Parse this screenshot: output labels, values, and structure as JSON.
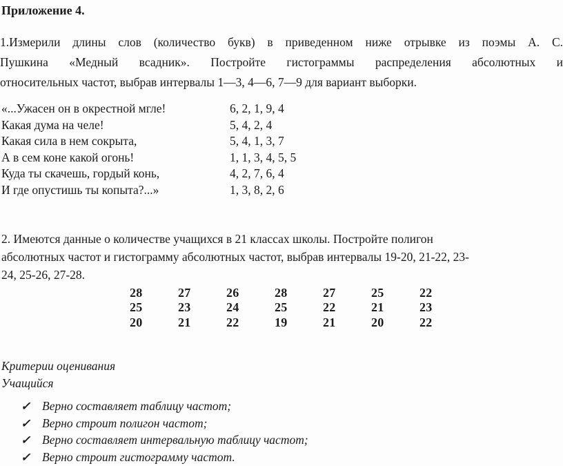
{
  "page": {
    "title": "Приложение 4.",
    "problem1": {
      "lines": [
        "1.Измерили длины слов (количество букв) в приведенном ниже отрывке из поэмы А. С.",
        "Пушкина «Медный всадник». Постройте гистограммы распределения абсолютных и",
        "относительных частот, выбрав интервалы 1—3, 4—6, 7—9 для вариант выборки."
      ]
    },
    "poem": {
      "rows": [
        {
          "text": "«...Ужасен он в окрестной мгле!",
          "counts": "6, 2, 1, 9, 4"
        },
        {
          "text": "Какая дума на челе!",
          "counts": "5, 4, 2, 4"
        },
        {
          "text": "Какая сила в нем сокрыта,",
          "counts": "5, 4, 1, 3, 7"
        },
        {
          "text": "А в сем коне какой огонь!",
          "counts": "1, 1, 3, 4, 5, 5"
        },
        {
          "text": "Куда ты скачешь, гордый конь,",
          "counts": "4, 2, 7, 6, 4"
        },
        {
          "text": "И где опустишь ты копыта?...»",
          "counts": "1, 3, 8, 2, 6"
        }
      ]
    },
    "problem2": {
      "lines": [
        "2. Имеются данные о количестве учащихся в 21 классах школы. Постройте полигон",
        "абсолютных частот и гистограмму абсолютных частот, выбрав интервалы 19-20, 21-22, 23-",
        "24, 25-26, 27-28."
      ],
      "grid": [
        [
          "28",
          "27",
          "26",
          "28",
          "27",
          "25",
          "22"
        ],
        [
          "25",
          "23",
          "24",
          "25",
          "22",
          "21",
          "23"
        ],
        [
          "20",
          "21",
          "22",
          "19",
          "21",
          "20",
          "22"
        ]
      ]
    },
    "criteria": {
      "heading": "Критерии оценивания",
      "subject": "Учащийся",
      "checkmark": "✓",
      "items": [
        "Верно составляет таблицу частот;",
        "Верно строит полигон частот;",
        "Верно составляет интервальную таблицу частот;",
        "Верно строит гистограмму частот."
      ]
    }
  }
}
